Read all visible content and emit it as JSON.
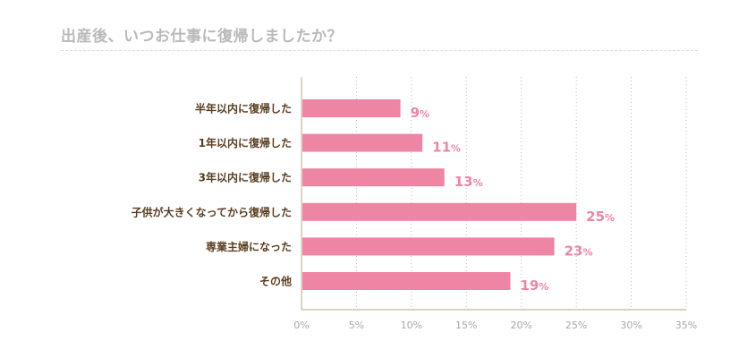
{
  "header": {
    "title": "出産後、いつお仕事に復帰しましたか？"
  },
  "colors": {
    "bar": "#ee85a5",
    "value_label": "#ee85a5",
    "category_label": "#5a3e1f",
    "axis": "#c8b89c",
    "grid": "#c8b89c",
    "tick_label": "#a8a8a8",
    "title": "#b9b9b9"
  },
  "chart_data": {
    "type": "bar",
    "orientation": "horizontal",
    "title": "出産後、いつお仕事に復帰しましたか？",
    "categories": [
      "半年以内に復帰した",
      "1年以内に復帰した",
      "3年以内に復帰した",
      "子供が大きくなってから復帰した",
      "専業主婦になった",
      "その他"
    ],
    "values": [
      9,
      11,
      13,
      25,
      23,
      19
    ],
    "value_unit": "%",
    "xlim": [
      0,
      35
    ],
    "xticks": [
      0,
      5,
      10,
      15,
      20,
      25,
      30,
      35
    ],
    "xtick_labels": [
      "0%",
      "5%",
      "10%",
      "15%",
      "20%",
      "25%",
      "30%",
      "35%"
    ],
    "xlabel": "",
    "ylabel": "",
    "grid": "vertical-dotted",
    "legend": "none"
  }
}
